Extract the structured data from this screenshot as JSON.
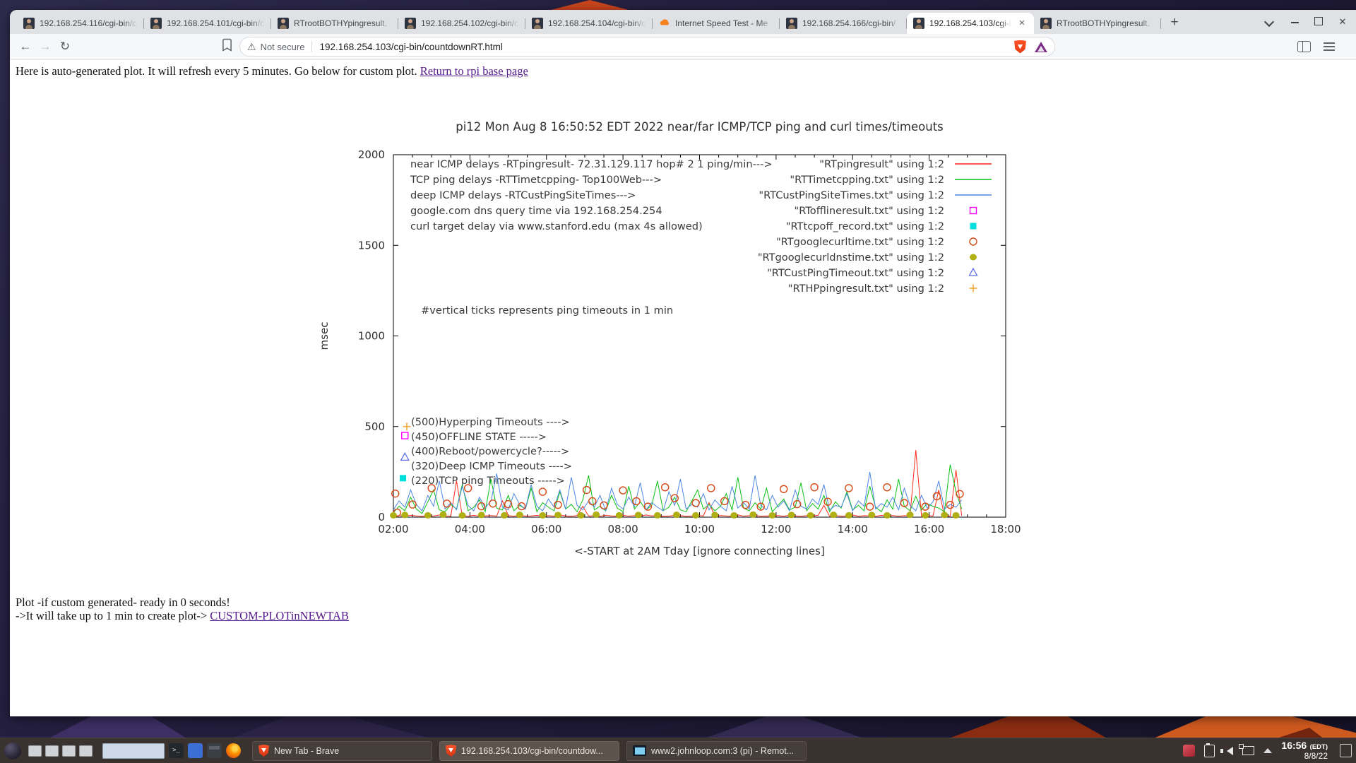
{
  "browser": {
    "tabs": [
      {
        "label": "192.168.254.116/cgi-bin/c",
        "favicon": "person",
        "active": false
      },
      {
        "label": "192.168.254.101/cgi-bin/c",
        "favicon": "person",
        "active": false
      },
      {
        "label": "RTrootBOTHYpingresult.",
        "favicon": "person",
        "active": false
      },
      {
        "label": "192.168.254.102/cgi-bin/c",
        "favicon": "person",
        "active": false
      },
      {
        "label": "192.168.254.104/cgi-bin/c",
        "favicon": "person",
        "active": false
      },
      {
        "label": "Internet Speed Test - Me",
        "favicon": "cloud",
        "active": false
      },
      {
        "label": "192.168.254.166/cgi-bin/",
        "favicon": "person",
        "active": false
      },
      {
        "label": "192.168.254.103/cgi-b",
        "favicon": "person",
        "active": true
      },
      {
        "label": "RTrootBOTHYpingresult.",
        "favicon": "person",
        "active": false
      }
    ],
    "nav": {
      "security_label": "Not secure",
      "url": "192.168.254.103/cgi-bin/countdownRT.html"
    }
  },
  "page": {
    "header_text": "Here is auto-generated plot. It will refresh every 5 minutes. Go below for custom plot. ",
    "header_link": "Return to rpi base page",
    "footer_line1": "Plot -if custom generated- ready in 0 seconds!",
    "footer_line2": "->It will take up to 1 min to create plot-> ",
    "footer_link": "CUSTOM-PLOTinNEWTAB"
  },
  "chart_data": {
    "type": "line",
    "title": "pi12 Mon Aug  8 16:50:52 EDT 2022  near/far ICMP/TCP ping and curl times/timeouts",
    "xlabel": "<-START at 2AM Tday [ignore connecting lines]",
    "ylabel": "msec",
    "x_ticks": [
      "02:00",
      "04:00",
      "06:00",
      "08:00",
      "10:00",
      "12:00",
      "14:00",
      "16:00",
      "18:00"
    ],
    "x_range_hours": [
      2,
      18
    ],
    "y_ticks": [
      0,
      500,
      1000,
      1500,
      2000
    ],
    "ylim": [
      0,
      2000
    ],
    "grid": false,
    "legend_position": "top-right-inside",
    "annotations": {
      "ticks_note": "#vertical ticks represents ping timeouts in 1 min",
      "level_labels": [
        "(500)Hyperping Timeouts ---->",
        "(450)OFFLINE STATE ----->",
        "(400)Reboot/powercycle?----->",
        "(320)Deep ICMP Timeouts ---->",
        "(220)TCP ping Timeouts ----->"
      ]
    },
    "series": [
      {
        "name": "RTpingresult",
        "legend_label": "near ICMP delays -RTpingresult- 72.31.129.117 hop# 2 1 ping/min--->",
        "legend_file": "\"RTpingresult\" using 1:2",
        "style": "line",
        "color": "#ff2a1a",
        "x_start": 2.0,
        "x_end": 16.85,
        "values": [
          6,
          8,
          5,
          10,
          7,
          5,
          9,
          6,
          12,
          7,
          5,
          200,
          8,
          6,
          10,
          5,
          7,
          9,
          6,
          90,
          8,
          5,
          11,
          6,
          7,
          10,
          5,
          8,
          6,
          12,
          7,
          5,
          9,
          60,
          6,
          8,
          5,
          11,
          7,
          5,
          10,
          6,
          8,
          5,
          12,
          7,
          9,
          5,
          6,
          10,
          8,
          5,
          7,
          11,
          6,
          80,
          5,
          9,
          7,
          5,
          12,
          6,
          8,
          10,
          5,
          7,
          6,
          9,
          5,
          11,
          7,
          5,
          8,
          6,
          10,
          65,
          5,
          9,
          6,
          7,
          12,
          5,
          8,
          7,
          5,
          10,
          6,
          9,
          5,
          8,
          7,
          370,
          5,
          9,
          6,
          150,
          8,
          5,
          260,
          7
        ]
      },
      {
        "name": "RTTimetcpping",
        "legend_label": "TCP ping delays -RTTimetcpping- Top100Web--->",
        "legend_file": "\"RTTimetcpping.txt\" using 1:2",
        "style": "line",
        "color": "#0ac012",
        "x_start": 2.0,
        "x_end": 16.85,
        "values": [
          25,
          60,
          35,
          110,
          45,
          20,
          85,
          150,
          40,
          30,
          70,
          45,
          180,
          35,
          55,
          95,
          30,
          210,
          50,
          40,
          120,
          35,
          65,
          45,
          160,
          30,
          80,
          55,
          35,
          140,
          45,
          70,
          30,
          95,
          230,
          40,
          60,
          35,
          120,
          50,
          30,
          170,
          45,
          85,
          40,
          65,
          200,
          35,
          55,
          110,
          40,
          30,
          90,
          150,
          45,
          70,
          35,
          60,
          130,
          40,
          220,
          50,
          35,
          80,
          45,
          160,
          30,
          65,
          100,
          40,
          55,
          190,
          35,
          75,
          45,
          120,
          30,
          85,
          50,
          140,
          40,
          65,
          35,
          170,
          55,
          30,
          95,
          45,
          210,
          60,
          35,
          115,
          40,
          75,
          60,
          50,
          30,
          290,
          140,
          45
        ]
      },
      {
        "name": "RTCustPingSiteTimes",
        "legend_label": "deep ICMP delays -RTCustPingSiteTimes--->",
        "legend_file": "\"RTCustPingSiteTimes.txt\" using 1:2",
        "style": "line",
        "color": "#4c86e4",
        "x_start": 2.0,
        "x_end": 16.85,
        "values": [
          40,
          90,
          55,
          150,
          70,
          35,
          120,
          60,
          200,
          45,
          80,
          40,
          170,
          65,
          35,
          110,
          50,
          90,
          240,
          55,
          40,
          130,
          70,
          45,
          180,
          60,
          35,
          100,
          55,
          150,
          45,
          220,
          65,
          40,
          90,
          55,
          120,
          35,
          160,
          70,
          45,
          110,
          60,
          190,
          40,
          80,
          55,
          35,
          140,
          65,
          210,
          45,
          70,
          55,
          130,
          40,
          95,
          60,
          35,
          170,
          50,
          80,
          45,
          230,
          65,
          40,
          120,
          55,
          90,
          35,
          150,
          60,
          45,
          100,
          70,
          180,
          40,
          65,
          55,
          130,
          35,
          90,
          60,
          250,
          45,
          75,
          55,
          110,
          40,
          160,
          65,
          35,
          120,
          50,
          85,
          200,
          45,
          70,
          55,
          95
        ]
      },
      {
        "name": "RTofflineresult",
        "legend_label": "google.com dns query time via 192.168.254.254",
        "legend_file": "\"RTofflineresult.txt\" using 1:2",
        "style": "square-open",
        "color": "#ff00ff",
        "points": [
          [
            2.3,
            450
          ]
        ]
      },
      {
        "name": "RTtcpoff_record",
        "legend_label": "curl target delay via www.stanford.edu (max 4s allowed)",
        "legend_file": "\"RTtcpoff_record.txt\" using 1:2",
        "style": "square-filled",
        "color": "#00dede",
        "points": [
          [
            2.25,
            215
          ]
        ]
      },
      {
        "name": "RTgooglecurltime",
        "legend_file": "\"RTgooglecurltime.txt\" using 1:2",
        "style": "circle-open",
        "color": "#d84713",
        "points": [
          [
            2.05,
            130
          ],
          [
            2.1,
            25
          ],
          [
            2.5,
            70
          ],
          [
            3.0,
            160
          ],
          [
            3.4,
            75
          ],
          [
            3.95,
            160
          ],
          [
            4.3,
            60
          ],
          [
            4.6,
            75
          ],
          [
            5.0,
            72
          ],
          [
            5.35,
            60
          ],
          [
            5.9,
            140
          ],
          [
            6.3,
            68
          ],
          [
            7.05,
            150
          ],
          [
            7.2,
            88
          ],
          [
            7.5,
            65
          ],
          [
            8.0,
            148
          ],
          [
            8.35,
            88
          ],
          [
            8.65,
            58
          ],
          [
            9.1,
            165
          ],
          [
            9.35,
            105
          ],
          [
            9.9,
            78
          ],
          [
            10.3,
            160
          ],
          [
            10.65,
            88
          ],
          [
            11.2,
            68
          ],
          [
            11.6,
            58
          ],
          [
            12.2,
            155
          ],
          [
            12.55,
            72
          ],
          [
            13.0,
            165
          ],
          [
            13.35,
            85
          ],
          [
            13.9,
            160
          ],
          [
            14.45,
            58
          ],
          [
            14.9,
            165
          ],
          [
            15.35,
            78
          ],
          [
            15.9,
            58
          ],
          [
            16.2,
            115
          ],
          [
            16.55,
            68
          ],
          [
            16.8,
            128
          ]
        ]
      },
      {
        "name": "RTgooglecurldnstime",
        "legend_file": "\"RTgooglecurldnstime.txt\" using 1:2",
        "style": "circle-filled",
        "color": "#b0b014",
        "points": [
          [
            2.0,
            10
          ],
          [
            2.3,
            12
          ],
          [
            2.9,
            10
          ],
          [
            3.3,
            14
          ],
          [
            3.8,
            10
          ],
          [
            4.3,
            12
          ],
          [
            4.9,
            10
          ],
          [
            5.3,
            13
          ],
          [
            5.9,
            10
          ],
          [
            6.3,
            12
          ],
          [
            6.9,
            10
          ],
          [
            7.3,
            14
          ],
          [
            7.9,
            10
          ],
          [
            8.4,
            12
          ],
          [
            8.9,
            10
          ],
          [
            9.4,
            13
          ],
          [
            9.9,
            10
          ],
          [
            10.4,
            12
          ],
          [
            10.9,
            10
          ],
          [
            11.4,
            14
          ],
          [
            11.9,
            10
          ],
          [
            12.4,
            12
          ],
          [
            12.9,
            10
          ],
          [
            13.5,
            13
          ],
          [
            13.9,
            10
          ],
          [
            14.5,
            12
          ],
          [
            14.9,
            10
          ],
          [
            15.5,
            13
          ],
          [
            15.9,
            10
          ],
          [
            16.4,
            12
          ],
          [
            16.7,
            10
          ]
        ]
      },
      {
        "name": "RTCustPingTimeout",
        "legend_file": "\"RTCustPingTimeout.txt\" using 1:2",
        "style": "triangle-open",
        "color": "#5f6fe8",
        "points": [
          [
            2.3,
            330
          ]
        ]
      },
      {
        "name": "RTHPpingresult",
        "legend_file": "\"RTHPpingresult.txt\" using 1:2",
        "style": "plus",
        "color": "#f2a93b",
        "points": [
          [
            2.35,
            500
          ]
        ]
      }
    ]
  },
  "taskbar": {
    "buttons": [
      {
        "label": "New Tab - Brave",
        "icon": "brave",
        "active": false
      },
      {
        "label": "192.168.254.103/cgi-bin/countdow...",
        "icon": "brave",
        "active": true
      },
      {
        "label": "www2.johnloop.com:3 (pi) - Remot...",
        "icon": "remote",
        "active": false
      }
    ],
    "clock_time": "16:56",
    "clock_tz": "(EDT)",
    "clock_date": "8/8/22"
  }
}
